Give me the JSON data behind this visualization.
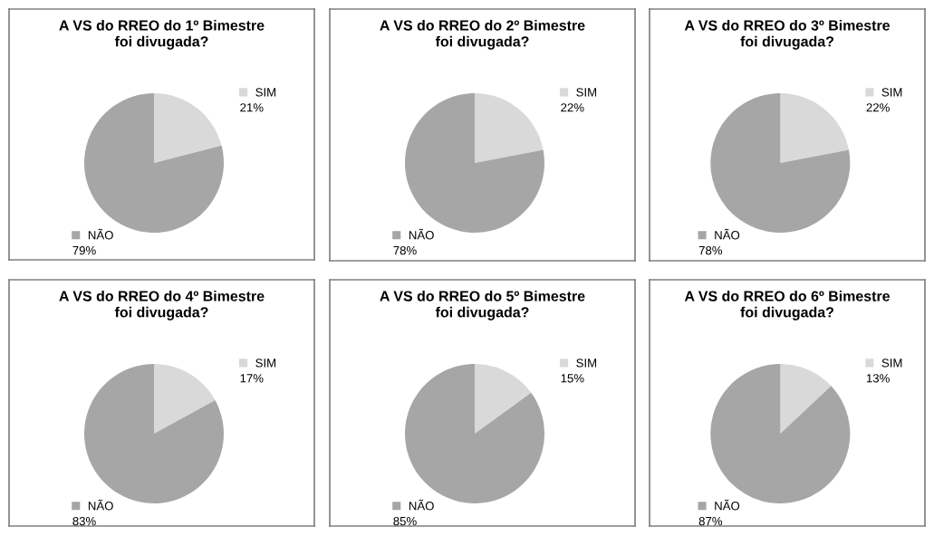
{
  "chart_data": [
    {
      "type": "pie",
      "title": "A VS do RREO do 1º Bimestre\nfoi divugada?",
      "categories": [
        "SIM",
        "NÃO"
      ],
      "values": [
        21,
        79
      ],
      "value_labels": [
        "21%",
        "79%"
      ],
      "colors": [
        "#d9d9d9",
        "#a6a6a6"
      ],
      "legend": "right"
    },
    {
      "type": "pie",
      "title": "A VS do RREO do 2º Bimestre\nfoi divugada?",
      "categories": [
        "SIM",
        "NÃO"
      ],
      "values": [
        22,
        78
      ],
      "value_labels": [
        "22%",
        "78%"
      ],
      "colors": [
        "#d9d9d9",
        "#a6a6a6"
      ],
      "legend": "right"
    },
    {
      "type": "pie",
      "title": "A VS do RREO do 3º Bimestre\nfoi divugada?",
      "categories": [
        "SIM",
        "NÃO"
      ],
      "values": [
        22,
        78
      ],
      "value_labels": [
        "22%",
        "78%"
      ],
      "colors": [
        "#d9d9d9",
        "#a6a6a6"
      ],
      "legend": "right"
    },
    {
      "type": "pie",
      "title": "A VS do RREO do 4º Bimestre\nfoi divugada?",
      "categories": [
        "SIM",
        "NÃO"
      ],
      "values": [
        17,
        83
      ],
      "value_labels": [
        "17%",
        "83%"
      ],
      "colors": [
        "#d9d9d9",
        "#a6a6a6"
      ],
      "legend": "right"
    },
    {
      "type": "pie",
      "title": "A VS do RREO do 5º Bimestre\nfoi divugada?",
      "categories": [
        "SIM",
        "NÃO"
      ],
      "values": [
        15,
        85
      ],
      "value_labels": [
        "15%",
        "85%"
      ],
      "colors": [
        "#d9d9d9",
        "#a6a6a6"
      ],
      "legend": "right"
    },
    {
      "type": "pie",
      "title": "A VS do RREO do 6º Bimestre\nfoi divugada?",
      "categories": [
        "SIM",
        "NÃO"
      ],
      "values": [
        13,
        87
      ],
      "value_labels": [
        "13%",
        "87%"
      ],
      "colors": [
        "#d9d9d9",
        "#a6a6a6"
      ],
      "legend": "right"
    }
  ]
}
